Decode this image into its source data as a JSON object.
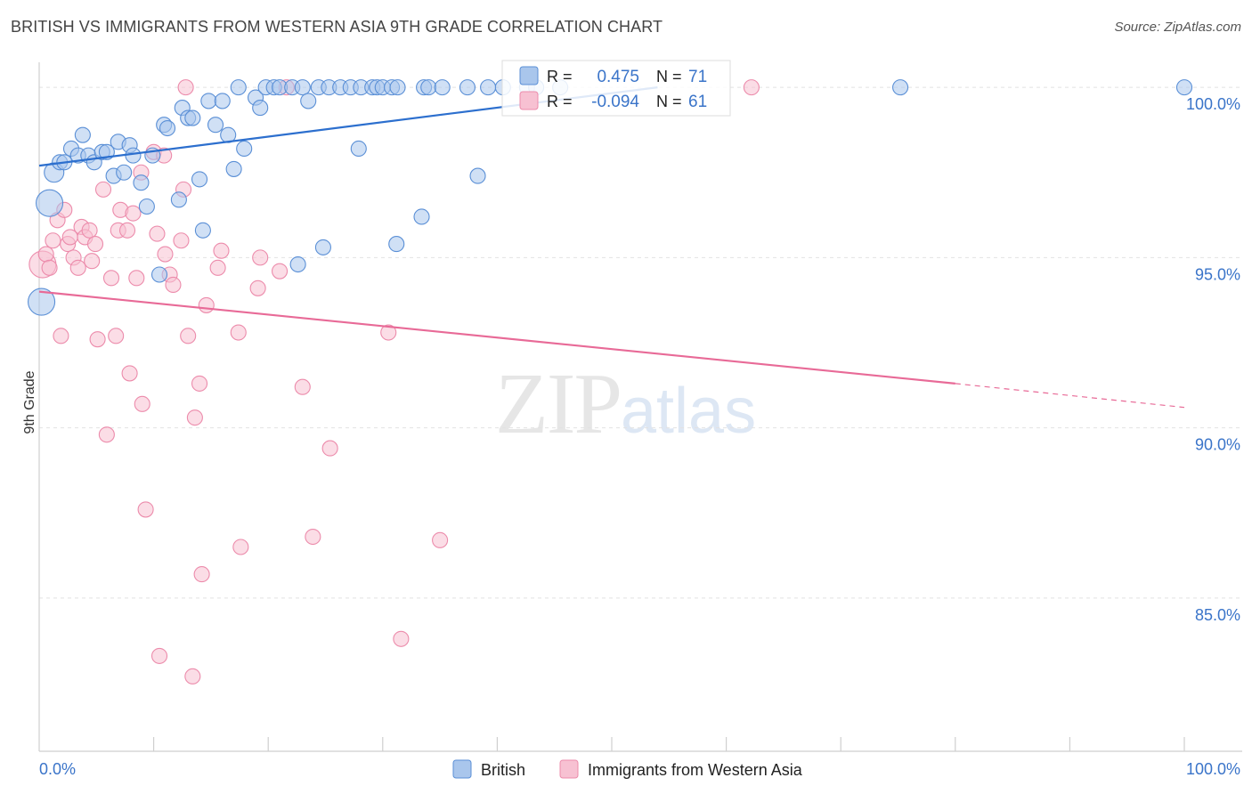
{
  "header": {
    "title": "BRITISH VS IMMIGRANTS FROM WESTERN ASIA 9TH GRADE CORRELATION CHART",
    "source": "Source: ZipAtlas.com"
  },
  "watermark": {
    "zip": "ZIP",
    "atlas": "atlas"
  },
  "legend_box": {
    "rows": [
      {
        "r_label": "R =",
        "r_value": "0.475",
        "n_label": "N =",
        "n_value": "71"
      },
      {
        "r_label": "R =",
        "r_value": "-0.094",
        "n_label": "N =",
        "n_value": "61"
      }
    ]
  },
  "bottom_legend": {
    "items": [
      "British",
      "Immigrants from Western Asia"
    ]
  },
  "colors": {
    "blue_fill": "#a9c6ec",
    "blue_stroke": "#5a8fd6",
    "blue_line": "#2c6fce",
    "pink_fill": "#f7c1d2",
    "pink_stroke": "#ec8bab",
    "pink_line": "#e86a97",
    "tick_text": "#3a74c9",
    "grid": "#e2e2e2"
  },
  "chart_data": {
    "type": "scatter",
    "title": "BRITISH VS IMMIGRANTS FROM WESTERN ASIA 9TH GRADE CORRELATION CHART",
    "xlabel": "",
    "ylabel": "9th Grade",
    "xlim": [
      0,
      100
    ],
    "ylim": [
      80.5,
      100.5
    ],
    "x_tick_labels": [
      "0.0%",
      "100.0%"
    ],
    "y_ticks": [
      85,
      90,
      95,
      100
    ],
    "y_tick_labels": [
      "85.0%",
      "90.0%",
      "95.0%",
      "100.0%"
    ],
    "grid": true,
    "series": [
      {
        "name": "British",
        "color": "#a9c6ec",
        "r": 0.475,
        "n": 71,
        "trend": {
          "x": [
            0,
            54
          ],
          "y": [
            97.7,
            100.0
          ]
        },
        "points": [
          {
            "x": 0.9,
            "y": 96.6,
            "s": "xl"
          },
          {
            "x": 0.2,
            "y": 93.7,
            "s": "xl"
          },
          {
            "x": 1.3,
            "y": 97.5,
            "s": "l"
          },
          {
            "x": 1.8,
            "y": 97.8
          },
          {
            "x": 2.2,
            "y": 97.8
          },
          {
            "x": 2.8,
            "y": 98.2
          },
          {
            "x": 3.4,
            "y": 98.0
          },
          {
            "x": 3.8,
            "y": 98.6
          },
          {
            "x": 4.3,
            "y": 98.0
          },
          {
            "x": 4.8,
            "y": 97.8
          },
          {
            "x": 5.5,
            "y": 98.1
          },
          {
            "x": 5.9,
            "y": 98.1
          },
          {
            "x": 6.5,
            "y": 97.4
          },
          {
            "x": 6.9,
            "y": 98.4
          },
          {
            "x": 7.4,
            "y": 97.5
          },
          {
            "x": 7.9,
            "y": 98.3
          },
          {
            "x": 8.2,
            "y": 98.0
          },
          {
            "x": 8.9,
            "y": 97.2
          },
          {
            "x": 9.4,
            "y": 96.5
          },
          {
            "x": 9.9,
            "y": 98.0
          },
          {
            "x": 10.5,
            "y": 94.5
          },
          {
            "x": 10.9,
            "y": 98.9
          },
          {
            "x": 11.2,
            "y": 98.8
          },
          {
            "x": 12.2,
            "y": 96.7
          },
          {
            "x": 12.5,
            "y": 99.4
          },
          {
            "x": 13.0,
            "y": 99.1
          },
          {
            "x": 13.4,
            "y": 99.1
          },
          {
            "x": 14.0,
            "y": 97.3
          },
          {
            "x": 14.3,
            "y": 95.8
          },
          {
            "x": 14.8,
            "y": 99.6
          },
          {
            "x": 15.4,
            "y": 98.9
          },
          {
            "x": 16.0,
            "y": 99.6
          },
          {
            "x": 16.5,
            "y": 98.6
          },
          {
            "x": 17.0,
            "y": 97.6
          },
          {
            "x": 17.4,
            "y": 100.0
          },
          {
            "x": 17.9,
            "y": 98.2
          },
          {
            "x": 18.9,
            "y": 99.7
          },
          {
            "x": 19.3,
            "y": 99.4
          },
          {
            "x": 19.8,
            "y": 100.0
          },
          {
            "x": 20.5,
            "y": 100.0
          },
          {
            "x": 21.0,
            "y": 100.0
          },
          {
            "x": 22.1,
            "y": 100.0
          },
          {
            "x": 22.6,
            "y": 94.8
          },
          {
            "x": 23.0,
            "y": 100.0
          },
          {
            "x": 23.5,
            "y": 99.6
          },
          {
            "x": 24.4,
            "y": 100.0
          },
          {
            "x": 24.8,
            "y": 95.3
          },
          {
            "x": 25.3,
            "y": 100.0
          },
          {
            "x": 26.3,
            "y": 100.0
          },
          {
            "x": 27.2,
            "y": 100.0
          },
          {
            "x": 27.9,
            "y": 98.2
          },
          {
            "x": 28.1,
            "y": 100.0
          },
          {
            "x": 29.1,
            "y": 100.0
          },
          {
            "x": 29.5,
            "y": 100.0
          },
          {
            "x": 30.0,
            "y": 100.0
          },
          {
            "x": 30.8,
            "y": 100.0
          },
          {
            "x": 31.3,
            "y": 100.0
          },
          {
            "x": 33.6,
            "y": 100.0
          },
          {
            "x": 34.0,
            "y": 100.0
          },
          {
            "x": 35.2,
            "y": 100.0
          },
          {
            "x": 37.4,
            "y": 100.0
          },
          {
            "x": 39.2,
            "y": 100.0
          },
          {
            "x": 40.5,
            "y": 100.0
          },
          {
            "x": 42.6,
            "y": 100.0
          },
          {
            "x": 43.4,
            "y": 100.0
          },
          {
            "x": 45.5,
            "y": 100.0
          },
          {
            "x": 33.4,
            "y": 96.2
          },
          {
            "x": 31.2,
            "y": 95.4
          },
          {
            "x": 38.3,
            "y": 97.4
          },
          {
            "x": 75.2,
            "y": 100.0
          },
          {
            "x": 100.0,
            "y": 100.0
          }
        ]
      },
      {
        "name": "Immigrants from Western Asia",
        "color": "#f7c1d2",
        "r": -0.094,
        "n": 61,
        "trend": {
          "x": [
            0,
            80
          ],
          "y": [
            94.0,
            91.3
          ]
        },
        "trend_dashed": {
          "x": [
            80,
            100
          ],
          "y": [
            91.3,
            90.6
          ]
        },
        "points": [
          {
            "x": 0.3,
            "y": 94.8,
            "s": "xl"
          },
          {
            "x": 0.6,
            "y": 95.1
          },
          {
            "x": 0.9,
            "y": 94.7
          },
          {
            "x": 1.2,
            "y": 95.5
          },
          {
            "x": 1.6,
            "y": 96.1
          },
          {
            "x": 1.9,
            "y": 92.7
          },
          {
            "x": 2.2,
            "y": 96.4
          },
          {
            "x": 2.5,
            "y": 95.4
          },
          {
            "x": 2.7,
            "y": 95.6
          },
          {
            "x": 3.0,
            "y": 95.0
          },
          {
            "x": 3.4,
            "y": 94.7
          },
          {
            "x": 3.7,
            "y": 95.9
          },
          {
            "x": 4.0,
            "y": 95.6
          },
          {
            "x": 4.4,
            "y": 95.8
          },
          {
            "x": 4.6,
            "y": 94.9
          },
          {
            "x": 4.9,
            "y": 95.4
          },
          {
            "x": 5.1,
            "y": 92.6
          },
          {
            "x": 5.6,
            "y": 97.0
          },
          {
            "x": 5.9,
            "y": 89.8
          },
          {
            "x": 6.3,
            "y": 94.4
          },
          {
            "x": 6.7,
            "y": 92.7
          },
          {
            "x": 6.9,
            "y": 95.8
          },
          {
            "x": 7.1,
            "y": 96.4
          },
          {
            "x": 7.7,
            "y": 95.8
          },
          {
            "x": 7.9,
            "y": 91.6
          },
          {
            "x": 8.2,
            "y": 96.3
          },
          {
            "x": 8.5,
            "y": 94.4
          },
          {
            "x": 8.9,
            "y": 97.5
          },
          {
            "x": 9.0,
            "y": 90.7
          },
          {
            "x": 9.3,
            "y": 87.6
          },
          {
            "x": 10.0,
            "y": 98.1
          },
          {
            "x": 10.3,
            "y": 95.7
          },
          {
            "x": 10.5,
            "y": 83.3
          },
          {
            "x": 10.9,
            "y": 98.0
          },
          {
            "x": 11.0,
            "y": 95.1
          },
          {
            "x": 11.4,
            "y": 94.5
          },
          {
            "x": 11.7,
            "y": 94.2
          },
          {
            "x": 12.4,
            "y": 95.5
          },
          {
            "x": 12.6,
            "y": 97.0
          },
          {
            "x": 12.8,
            "y": 100.0
          },
          {
            "x": 13.0,
            "y": 92.7
          },
          {
            "x": 13.4,
            "y": 82.7
          },
          {
            "x": 13.6,
            "y": 90.3
          },
          {
            "x": 14.0,
            "y": 91.3
          },
          {
            "x": 14.2,
            "y": 85.7
          },
          {
            "x": 14.6,
            "y": 93.6
          },
          {
            "x": 15.6,
            "y": 94.7
          },
          {
            "x": 15.9,
            "y": 95.2
          },
          {
            "x": 17.4,
            "y": 92.8
          },
          {
            "x": 17.6,
            "y": 86.5
          },
          {
            "x": 19.1,
            "y": 94.1
          },
          {
            "x": 19.3,
            "y": 95.0
          },
          {
            "x": 21.0,
            "y": 94.6
          },
          {
            "x": 21.6,
            "y": 100.0
          },
          {
            "x": 23.0,
            "y": 91.2
          },
          {
            "x": 23.9,
            "y": 86.8
          },
          {
            "x": 25.4,
            "y": 89.4
          },
          {
            "x": 30.5,
            "y": 92.8
          },
          {
            "x": 31.6,
            "y": 83.8
          },
          {
            "x": 35.0,
            "y": 86.7
          },
          {
            "x": 62.2,
            "y": 100.0
          }
        ]
      }
    ]
  }
}
